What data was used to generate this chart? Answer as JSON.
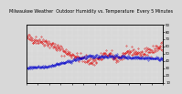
{
  "title": "Milwaukee Weather  Outdoor Humidity vs. Temperature  Every 5 Minutes",
  "bg_color": "#d8d8d8",
  "plot_bg_color": "#d8d8d8",
  "red_color": "#dd0000",
  "blue_color": "#0000cc",
  "n_points": 288,
  "humidity_base": 75,
  "humidity_amplitude": 18,
  "temp_base": 38,
  "temp_amplitude": 10,
  "ylim_left": [
    0,
    110
  ],
  "ylim_right": [
    10,
    90
  ],
  "title_fontsize": 3.5,
  "tick_fontsize": 2.8,
  "marker_size": 0.6,
  "linewidth": 0.0
}
